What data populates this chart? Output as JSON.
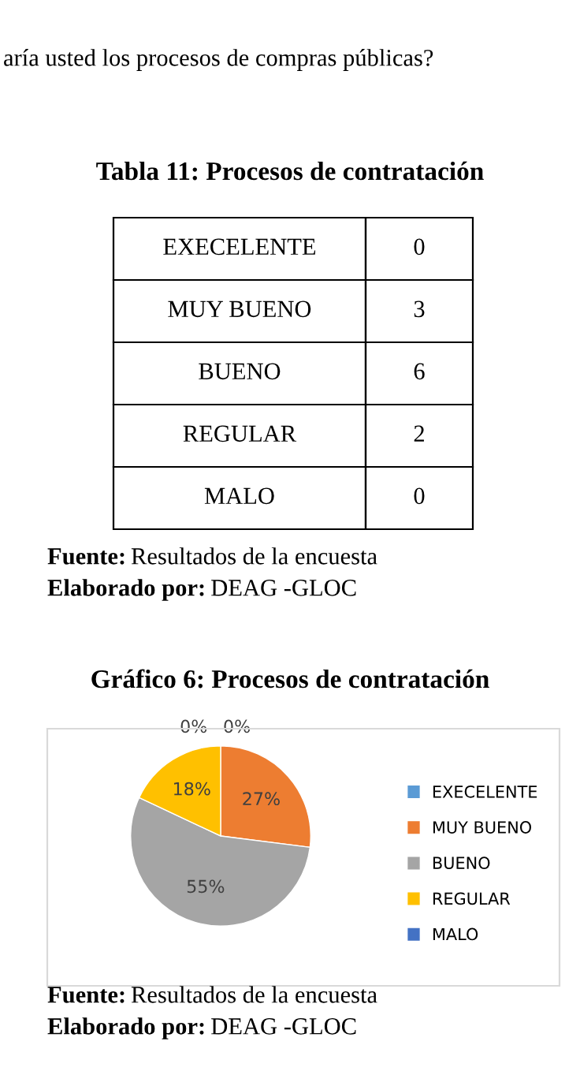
{
  "chart_data": [
    {
      "type": "other",
      "title": "Tabla 11: Procesos de contratación",
      "categories": [
        "EXECELENTE",
        "MUY BUENO",
        "BUENO",
        "REGULAR",
        "MALO"
      ],
      "values": [
        0,
        3,
        6,
        2,
        0
      ],
      "data_labels": true,
      "annotations": [
        "aría usted los procesos de compras públicas?",
        "Fuente: Resultados de la encuesta",
        "Elaborado por: DEAG -GLOC"
      ]
    },
    {
      "type": "pie",
      "title": "Gráfico 6: Procesos de contratación",
      "categories": [
        "EXECELENTE",
        "MUY BUENO",
        "BUENO",
        "REGULAR",
        "MALO"
      ],
      "values": [
        0,
        27,
        55,
        18,
        0
      ],
      "colors": [
        "#5b9bd5",
        "#ed7d31",
        "#a5a5a5",
        "#ffc000",
        "#4472c4"
      ],
      "value_labels": [
        "0%",
        "27%",
        "55%",
        "18%",
        "0%"
      ],
      "legend": "right",
      "annotations": [
        "Fuente: Resultados de la encuesta",
        "Elaborado por: DEAG -GLOC"
      ]
    }
  ]
}
